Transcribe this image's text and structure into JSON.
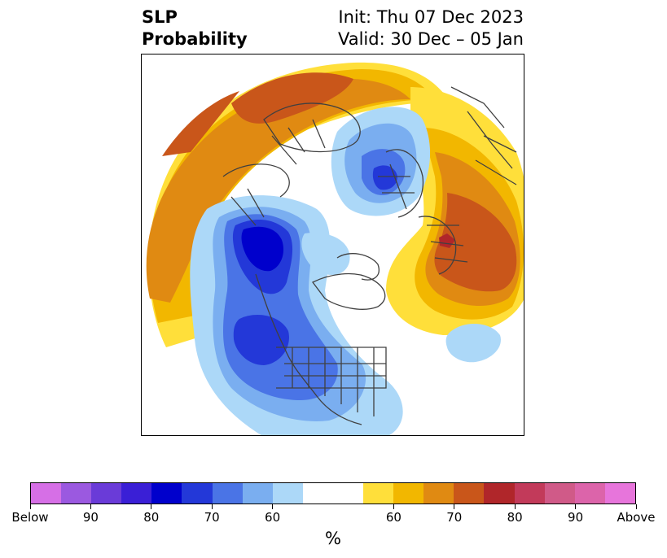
{
  "title": {
    "left_line1": "SLP",
    "left_line2": "Probability",
    "right_line1": "Init: Thu 07 Dec 2023",
    "right_line2": "Valid: 30 Dec – 05 Jan"
  },
  "colorbar": {
    "unit": "%",
    "colors": [
      "#d66fe6",
      "#9b59e0",
      "#6a3bd8",
      "#3a1fd6",
      "#0000cc",
      "#2338d8",
      "#4a74e6",
      "#7aaef0",
      "#acd8f8",
      "#ffffff",
      "#ffffff",
      "#ffdf3a",
      "#f2b700",
      "#e08a12",
      "#c9561a",
      "#b0262a",
      "#c23a5a",
      "#d05a88",
      "#dc64aa",
      "#e775db"
    ],
    "tick_labels": [
      "Below",
      "90",
      "80",
      "70",
      "60",
      "60",
      "70",
      "80",
      "90",
      "Above"
    ]
  },
  "map": {
    "projection": "north-polar-stereographic",
    "legend_meaning": "Probability of below (blue) / above (orange-red) normal sea level pressure"
  }
}
